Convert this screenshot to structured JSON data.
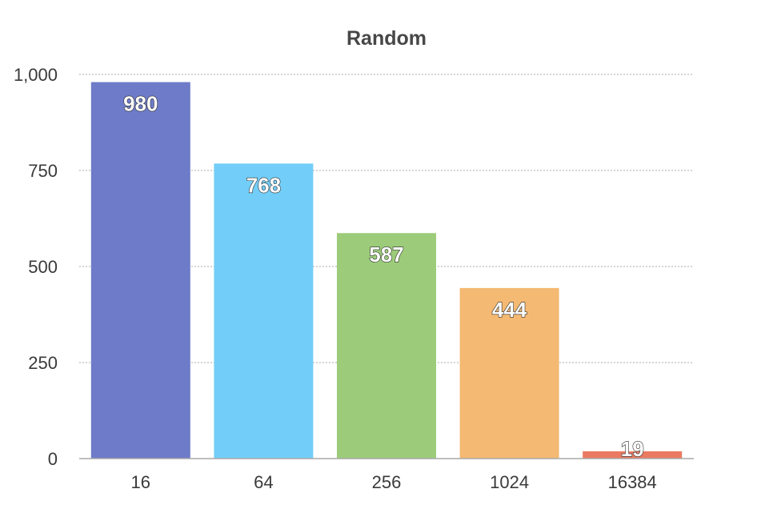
{
  "chart_data": {
    "type": "bar",
    "title": "Random",
    "categories": [
      "16",
      "64",
      "256",
      "1024",
      "16384"
    ],
    "values": [
      980,
      768,
      587,
      444,
      19
    ],
    "data_labels": [
      "980",
      "768",
      "587",
      "444",
      "19"
    ],
    "colors": [
      "#6e7bc8",
      "#72cef8",
      "#9ccc79",
      "#f4b972",
      "#ea7a62"
    ],
    "ylim": [
      0,
      1000
    ],
    "yticks": [
      0,
      250,
      500,
      750,
      1000
    ],
    "ytick_labels": [
      "0",
      "250",
      "500",
      "750",
      "1,000"
    ],
    "grid": true,
    "xlabel": "",
    "ylabel": ""
  }
}
